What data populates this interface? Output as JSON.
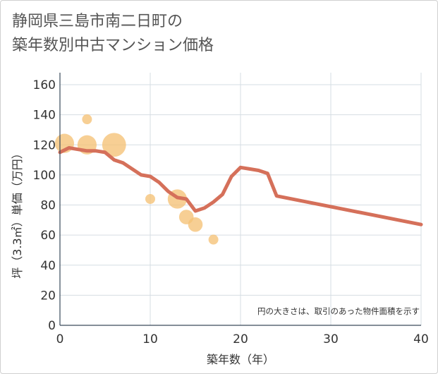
{
  "title_lines": [
    "静岡県三島市南二日町の",
    "築年数別中古マンション価格"
  ],
  "chart_data": {
    "type": "scatter+line",
    "title": "静岡県三島市南二日町の築年数別中古マンション価格",
    "xlabel": "築年数（年）",
    "ylabel": "坪（3.3㎡）単価（万円）",
    "xlim": [
      0,
      40
    ],
    "ylim": [
      0,
      168
    ],
    "xticks": [
      0,
      10,
      20,
      30,
      40
    ],
    "yticks": [
      0,
      20,
      40,
      60,
      80,
      100,
      120,
      140,
      160
    ],
    "grid": true,
    "annotation": "円の大きさは、取引のあった物件面積を示す",
    "colors": {
      "bubble": "#f5c176",
      "line": "#d5705a",
      "axis_text": "#333333",
      "grid": "#d6dde3"
    },
    "bubbles": [
      {
        "x": 0.5,
        "y": 121,
        "size": 3
      },
      {
        "x": 3,
        "y": 137,
        "size": 1
      },
      {
        "x": 3,
        "y": 120,
        "size": 3
      },
      {
        "x": 6,
        "y": 120,
        "size": 4
      },
      {
        "x": 10,
        "y": 84,
        "size": 1
      },
      {
        "x": 13,
        "y": 84,
        "size": 3
      },
      {
        "x": 14,
        "y": 72,
        "size": 2
      },
      {
        "x": 15,
        "y": 67,
        "size": 2
      },
      {
        "x": 17,
        "y": 57,
        "size": 1
      }
    ],
    "line": {
      "x": [
        0,
        1,
        2,
        3,
        4,
        5,
        6,
        7,
        8,
        9,
        10,
        11,
        12,
        13,
        14,
        15,
        16,
        17,
        18,
        19,
        20,
        21,
        22,
        23,
        24,
        40
      ],
      "y": [
        115,
        118,
        117,
        116,
        116,
        115,
        110,
        108,
        104,
        100,
        99,
        95,
        89,
        85,
        84,
        76,
        78,
        82,
        87,
        99,
        105,
        104,
        103,
        101,
        86,
        67
      ]
    }
  }
}
